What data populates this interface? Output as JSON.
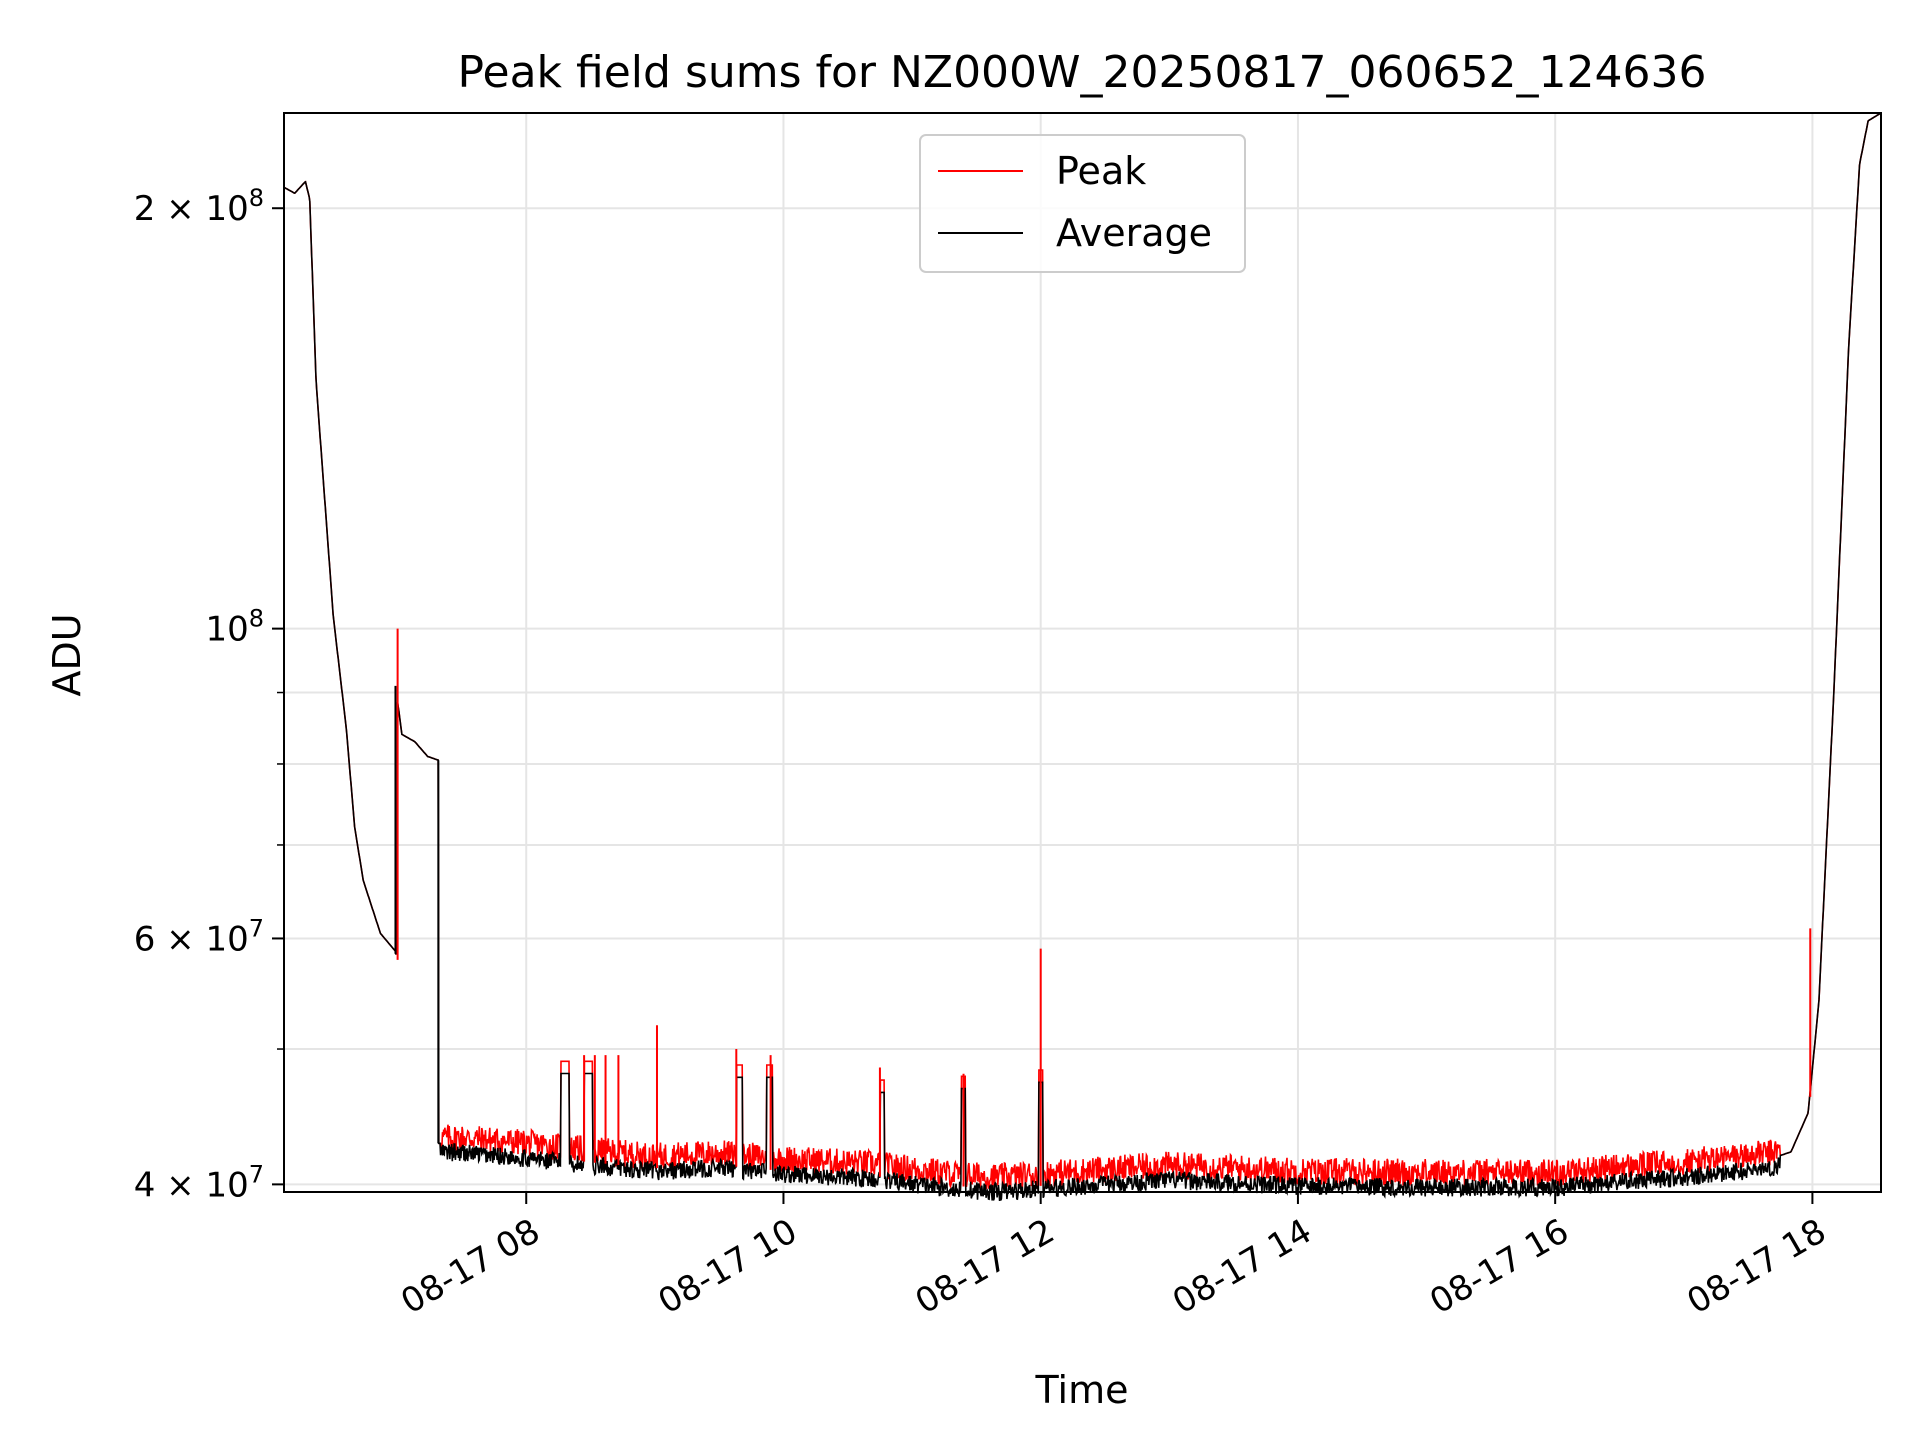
{
  "chart_data": {
    "type": "line",
    "title": "Peak field sums for NZ000W_20250817_060652_124636",
    "xlabel": "Time",
    "ylabel": "ADU",
    "yscale": "log",
    "xlim": [
      "08-17 06:07",
      "08-17 18:32"
    ],
    "ylim": [
      39500000,
      234000000
    ],
    "grid": true,
    "legend_position": "upper center",
    "x_ticks": [
      "08-17 08",
      "08-17 10",
      "08-17 12",
      "08-17 14",
      "08-17 16",
      "08-17 18"
    ],
    "y_ticks": [
      {
        "value": 40000000,
        "mantissa": "4",
        "exp": "7"
      },
      {
        "value": 60000000,
        "mantissa": "6",
        "exp": "7"
      },
      {
        "value": 100000000,
        "mantissa": "",
        "exp": "8"
      },
      {
        "value": 200000000,
        "mantissa": "2",
        "exp": "8"
      }
    ],
    "series": [
      {
        "name": "Peak",
        "color": "#ff0000"
      },
      {
        "name": "Average",
        "color": "#000000"
      }
    ],
    "baseline": {
      "x": [
        "08-17 06:07",
        "08-17 06:12",
        "08-17 06:17",
        "08-17 06:19",
        "08-17 06:22",
        "08-17 06:30",
        "08-17 06:36",
        "08-17 06:40",
        "08-17 06:44",
        "08-17 06:52",
        "08-17 07:00",
        "08-17 06:59",
        "08-17 07:02",
        "08-17 07:08",
        "08-17 07:14",
        "08-17 07:19",
        "08-17 07:19",
        "08-17 07:30",
        "08-17 08:00",
        "08-17 08:30",
        "08-17 09:00",
        "08-17 09:30",
        "08-17 10:00",
        "08-17 10:40",
        "08-17 11:20",
        "08-17 11:40",
        "08-17 12:00",
        "08-17 13:00",
        "08-17 14:00",
        "08-17 15:00",
        "08-17 16:00",
        "08-17 17:00",
        "08-17 17:40",
        "08-17 17:50",
        "08-17 17:58",
        "08-17 18:03",
        "08-17 18:10",
        "08-17 18:17",
        "08-17 18:22",
        "08-17 18:26",
        "08-17 18:32"
      ],
      "y": [
        207000000,
        205000000,
        209000000,
        203000000,
        150000000,
        102000000,
        85000000,
        72000000,
        66000000,
        60500000,
        58500000,
        91000000,
        84000000,
        83000000,
        81000000,
        80500000,
        42800000,
        42800000,
        42400000,
        41900000,
        41500000,
        41700000,
        41300000,
        41000000,
        40300000,
        40100000,
        40300000,
        40900000,
        40500000,
        40400000,
        40400000,
        41100000,
        41700000,
        42200000,
        45000000,
        54000000,
        90000000,
        160000000,
        215000000,
        231000000,
        234000000
      ]
    },
    "spikes_peak": [
      {
        "x": "08-17 07:00",
        "y": 100000000
      },
      {
        "x": "08-17 08:27",
        "y": 49500000
      },
      {
        "x": "08-17 08:32",
        "y": 49500000
      },
      {
        "x": "08-17 08:37",
        "y": 49500000
      },
      {
        "x": "08-17 08:43",
        "y": 49500000
      },
      {
        "x": "08-17 09:01",
        "y": 52000000
      },
      {
        "x": "08-17 09:38",
        "y": 50000000
      },
      {
        "x": "08-17 09:54",
        "y": 49500000
      },
      {
        "x": "08-17 10:45",
        "y": 48500000
      },
      {
        "x": "08-17 11:24",
        "y": 48000000
      },
      {
        "x": "08-17 12:00",
        "y": 59000000
      },
      {
        "x": "08-17 17:59",
        "y": 61000000
      }
    ],
    "plateaus": [
      {
        "x0": "08-17 08:16",
        "x1": "08-17 08:20",
        "y": 49000000
      },
      {
        "x0": "08-17 08:27",
        "x1": "08-17 08:31",
        "y": 49000000
      },
      {
        "x0": "08-17 09:38",
        "x1": "08-17 09:41",
        "y": 48700000
      },
      {
        "x0": "08-17 09:52",
        "x1": "08-17 09:55",
        "y": 48700000
      },
      {
        "x0": "08-17 10:45",
        "x1": "08-17 10:47",
        "y": 47500000
      },
      {
        "x0": "08-17 11:23",
        "x1": "08-17 11:25",
        "y": 47800000
      },
      {
        "x0": "08-17 11:59",
        "x1": "08-17 12:01",
        "y": 48300000
      }
    ]
  }
}
